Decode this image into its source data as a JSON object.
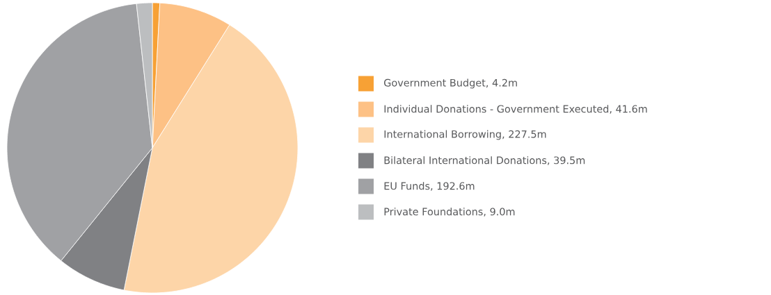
{
  "chart_data": {
    "type": "pie",
    "legend": "right",
    "categories": [
      "Government Budget, 4.2m",
      "Individual Donations - Government Executed, 41.6m",
      "International Borrowing, 227.5m",
      "Bilateral International Donations, 39.5m",
      "EU Funds, 192.6m",
      "Private Foundations, 9.0m"
    ],
    "values": [
      4.2,
      41.6,
      227.5,
      39.5,
      192.6,
      9.0
    ],
    "colors": [
      "#f7a135",
      "#fdc185",
      "#fdd5a8",
      "#808184",
      "#a0a1a4",
      "#bcbec0"
    ]
  }
}
